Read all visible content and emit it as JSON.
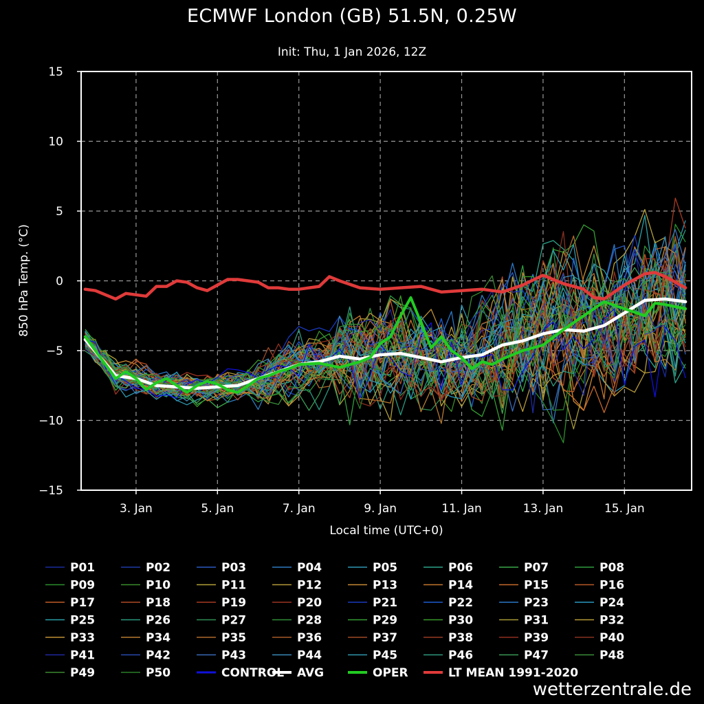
{
  "title": "ECMWF London (GB) 51.5N, 0.25W",
  "subtitle": "Init: Thu, 1 Jan 2026, 12Z",
  "watermark": "wetterzentrale.de",
  "colors": {
    "background": "#000000",
    "avg": "#ffffff",
    "oper": "#22cc22",
    "lt_mean": "#e03a3a",
    "control": "#1010dd",
    "grid": "#9a9a9a"
  },
  "chart_data": {
    "type": "line",
    "xlabel": "Local time (UTC+0)",
    "ylabel": "850 hPa Temp. (°C)",
    "x_ticks": [
      "3. Jan",
      "5. Jan",
      "7. Jan",
      "9. Jan",
      "11. Jan",
      "13. Jan",
      "15. Jan"
    ],
    "x_tick_days": [
      3,
      5,
      7,
      9,
      11,
      13,
      15
    ],
    "xlim_days": [
      1.65,
      16.65
    ],
    "ylim": [
      -15,
      15
    ],
    "y_ticks": [
      15,
      10,
      5,
      0,
      -5,
      -10,
      -15
    ],
    "grid": true,
    "legend_position": "bottom",
    "members": [
      "P01",
      "P02",
      "P03",
      "P04",
      "P05",
      "P06",
      "P07",
      "P08",
      "P09",
      "P10",
      "P11",
      "P12",
      "P13",
      "P14",
      "P15",
      "P16",
      "P17",
      "P18",
      "P19",
      "P20",
      "P21",
      "P22",
      "P23",
      "P24",
      "P25",
      "P26",
      "P27",
      "P28",
      "P29",
      "P30",
      "P31",
      "P32",
      "P33",
      "P34",
      "P35",
      "P36",
      "P37",
      "P38",
      "P39",
      "P40",
      "P41",
      "P42",
      "P43",
      "P44",
      "P45",
      "P46",
      "P47",
      "P48",
      "P49",
      "P50",
      "CONTROL"
    ],
    "member_colors": [
      "#1a2a9a",
      "#1f3aa8",
      "#2a5bc0",
      "#2f7bbf",
      "#2f97b5",
      "#2ea48a",
      "#3aa84a",
      "#2f9e3f",
      "#2c8f2c",
      "#3a8f2a",
      "#b5a23a",
      "#b59a38",
      "#c98a34",
      "#c4762c",
      "#c96a2c",
      "#b85a28",
      "#c05a28",
      "#b04a25",
      "#a83a22",
      "#9e3322",
      "#1a3ac0",
      "#1f5ad0",
      "#2a78c8",
      "#2a98c0",
      "#2aa0a8",
      "#2a9a80",
      "#2f8f55",
      "#2f8f3a",
      "#359f35",
      "#3a9a2a",
      "#a89a35",
      "#b89a3a",
      "#c08f35",
      "#b87a30",
      "#b06a2c",
      "#a85a28",
      "#a04a25",
      "#983a22",
      "#902f20",
      "#883020",
      "#1f2aa0",
      "#2a4ab0",
      "#3a6ab8",
      "#3a8ab8",
      "#2f9ab0",
      "#2f9a80",
      "#3a9a55",
      "#3a8f3a",
      "#3a8a30",
      "#2a7f2a",
      "#1010dd"
    ],
    "series": [
      {
        "name": "AVG",
        "x": [
          1.75,
          2.5,
          3.0,
          3.5,
          4.0,
          4.5,
          5.0,
          5.5,
          6.0,
          6.5,
          7.0,
          7.5,
          8.0,
          8.5,
          9.0,
          9.5,
          10.0,
          10.5,
          11.0,
          11.5,
          12.0,
          12.5,
          13.0,
          13.5,
          14.0,
          14.5,
          15.0,
          15.5,
          16.0,
          16.5
        ],
        "values": [
          -4.2,
          -6.8,
          -7.0,
          -7.5,
          -7.6,
          -7.7,
          -7.6,
          -7.5,
          -7.0,
          -6.5,
          -6.0,
          -5.8,
          -5.4,
          -5.6,
          -5.3,
          -5.2,
          -5.5,
          -5.8,
          -5.5,
          -5.3,
          -4.6,
          -4.3,
          -3.8,
          -3.5,
          -3.6,
          -3.2,
          -2.3,
          -1.4,
          -1.3,
          -1.5
        ]
      },
      {
        "name": "OPER",
        "x": [
          1.75,
          2.0,
          2.25,
          2.5,
          2.75,
          3.0,
          3.25,
          3.5,
          3.75,
          4.0,
          4.25,
          4.5,
          4.75,
          5.0,
          5.25,
          5.5,
          5.75,
          6.0,
          6.25,
          6.5,
          6.75,
          7.0,
          7.5,
          8.0,
          8.5,
          8.75,
          9.0,
          9.25,
          9.5,
          9.75,
          10.0,
          10.25,
          10.5,
          10.75,
          11.0,
          11.25,
          11.5,
          11.75,
          12.0,
          12.5,
          13.0,
          13.5,
          14.0,
          14.5,
          15.0,
          15.5,
          15.75,
          16.0,
          16.5
        ],
        "values": [
          -4.0,
          -5.0,
          -6.0,
          -7.0,
          -6.5,
          -7.0,
          -7.8,
          -7.3,
          -7.0,
          -7.5,
          -8.0,
          -7.5,
          -7.2,
          -7.4,
          -7.8,
          -8.0,
          -7.5,
          -7.0,
          -6.8,
          -6.5,
          -6.3,
          -6.0,
          -5.9,
          -6.2,
          -5.8,
          -5.5,
          -4.5,
          -4.0,
          -2.5,
          -1.2,
          -3.0,
          -4.8,
          -4.0,
          -5.0,
          -5.5,
          -6.3,
          -5.8,
          -6.0,
          -5.6,
          -5.0,
          -4.6,
          -3.5,
          -2.5,
          -1.5,
          -2.0,
          -2.5,
          -1.6,
          -1.7,
          -2.0
        ]
      },
      {
        "name": "LT MEAN 1991-2020",
        "x": [
          1.75,
          2.0,
          2.25,
          2.5,
          2.75,
          3.0,
          3.25,
          3.5,
          3.75,
          4.0,
          4.25,
          4.5,
          4.75,
          5.0,
          5.25,
          5.5,
          5.75,
          6.0,
          6.25,
          6.5,
          6.75,
          7.0,
          7.5,
          7.75,
          8.0,
          8.5,
          9.0,
          9.5,
          10.0,
          10.5,
          11.0,
          11.5,
          12.0,
          12.5,
          13.0,
          13.5,
          14.0,
          14.25,
          14.5,
          15.0,
          15.5,
          15.75,
          16.0,
          16.5
        ],
        "values": [
          -0.6,
          -0.7,
          -1.0,
          -1.3,
          -0.9,
          -1.0,
          -1.1,
          -0.4,
          -0.4,
          0.0,
          -0.1,
          -0.5,
          -0.7,
          -0.3,
          0.1,
          0.1,
          0.0,
          -0.1,
          -0.5,
          -0.5,
          -0.6,
          -0.6,
          -0.4,
          0.3,
          0.0,
          -0.5,
          -0.6,
          -0.5,
          -0.4,
          -0.8,
          -0.7,
          -0.6,
          -0.8,
          -0.3,
          0.4,
          -0.2,
          -0.6,
          -1.2,
          -1.3,
          -0.3,
          0.5,
          0.6,
          0.3,
          -0.5
        ]
      }
    ]
  },
  "legend": {
    "rows": [
      [
        "P01",
        "P02",
        "P03",
        "P04",
        "P05",
        "P06",
        "P07",
        "P08"
      ],
      [
        "P09",
        "P10",
        "P11",
        "P12",
        "P13",
        "P14",
        "P15",
        "P16"
      ],
      [
        "P17",
        "P18",
        "P19",
        "P20",
        "P21",
        "P22",
        "P23",
        "P24"
      ],
      [
        "P25",
        "P26",
        "P27",
        "P28",
        "P29",
        "P30",
        "P31",
        "P32"
      ],
      [
        "P33",
        "P34",
        "P35",
        "P36",
        "P37",
        "P38",
        "P39",
        "P40"
      ],
      [
        "P41",
        "P42",
        "P43",
        "P44",
        "P45",
        "P46",
        "P47",
        "P48"
      ],
      [
        "P49",
        "P50",
        "CONTROL",
        "AVG",
        "OPER",
        "LT MEAN 1991-2020"
      ]
    ]
  }
}
